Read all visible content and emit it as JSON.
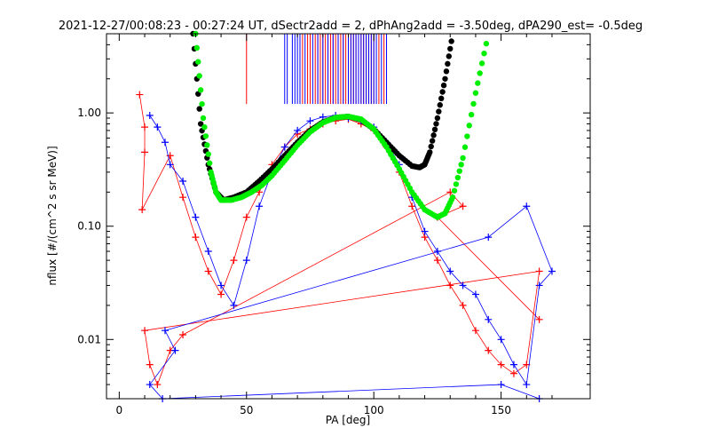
{
  "chart_data": {
    "type": "scatter",
    "title": "2021-12-27/00:08:23 - 00:27:24 UT, dSectr2add = 2, dPhAng2add = -3.50deg, dPA290_est=  -0.5deg",
    "xlabel": "PA [deg]",
    "ylabel": "nflux [#/(cm^2 s sr MeV)]",
    "xlim": [
      -5,
      185
    ],
    "ylim": [
      0.003,
      5
    ],
    "y_scale": "log",
    "x_ticks": [
      0,
      50,
      100,
      150
    ],
    "x_tick_labels": [
      "0",
      "50",
      "100",
      "150"
    ],
    "y_ticks": [
      0.01,
      0.1,
      1.0
    ],
    "y_tick_labels": [
      "0.01",
      "0.10",
      "1.00"
    ],
    "grid": false,
    "colors": {
      "red": "#ff0000",
      "blue": "#0000ff",
      "black_fit": "#000000",
      "green_fit": "#00ee00",
      "frame": "#000000"
    },
    "series": [
      {
        "color": "red",
        "style": "lines+plus-markers",
        "points_sample": [
          [
            8,
            1.45
          ],
          [
            10,
            0.75
          ],
          [
            10,
            0.45
          ],
          [
            9,
            0.14
          ],
          [
            20,
            0.42
          ],
          [
            25,
            0.18
          ],
          [
            30,
            0.08
          ],
          [
            35,
            0.04
          ],
          [
            40,
            0.025
          ],
          [
            45,
            0.05
          ],
          [
            50,
            0.12
          ],
          [
            55,
            0.2
          ],
          [
            60,
            0.35
          ],
          [
            65,
            0.5
          ],
          [
            70,
            0.65
          ],
          [
            75,
            0.72
          ],
          [
            80,
            0.8
          ],
          [
            85,
            0.85
          ],
          [
            90,
            0.88
          ],
          [
            95,
            0.8
          ],
          [
            100,
            0.7
          ],
          [
            105,
            0.5
          ],
          [
            110,
            0.3
          ],
          [
            115,
            0.15
          ],
          [
            120,
            0.08
          ],
          [
            125,
            0.05
          ],
          [
            130,
            0.03
          ],
          [
            135,
            0.02
          ],
          [
            140,
            0.012
          ],
          [
            145,
            0.008
          ],
          [
            150,
            0.006
          ],
          [
            155,
            0.005
          ],
          [
            160,
            0.006
          ],
          [
            165,
            0.04
          ],
          [
            10,
            0.012
          ],
          [
            12,
            0.006
          ],
          [
            15,
            0.004
          ],
          [
            20,
            0.008
          ],
          [
            25,
            0.011
          ],
          [
            130,
            0.2
          ],
          [
            135,
            0.15
          ],
          [
            125,
            0.12
          ],
          [
            165,
            0.015
          ]
        ]
      },
      {
        "color": "blue",
        "style": "lines+plus-markers",
        "points_sample": [
          [
            12,
            0.95
          ],
          [
            15,
            0.75
          ],
          [
            18,
            0.55
          ],
          [
            20,
            0.35
          ],
          [
            25,
            0.25
          ],
          [
            30,
            0.12
          ],
          [
            35,
            0.06
          ],
          [
            40,
            0.03
          ],
          [
            45,
            0.02
          ],
          [
            50,
            0.05
          ],
          [
            55,
            0.15
          ],
          [
            60,
            0.3
          ],
          [
            65,
            0.5
          ],
          [
            70,
            0.7
          ],
          [
            75,
            0.85
          ],
          [
            80,
            0.92
          ],
          [
            85,
            0.95
          ],
          [
            90,
            0.9
          ],
          [
            95,
            0.85
          ],
          [
            100,
            0.75
          ],
          [
            105,
            0.55
          ],
          [
            110,
            0.35
          ],
          [
            115,
            0.18
          ],
          [
            120,
            0.09
          ],
          [
            125,
            0.06
          ],
          [
            130,
            0.04
          ],
          [
            135,
            0.03
          ],
          [
            140,
            0.025
          ],
          [
            145,
            0.015
          ],
          [
            150,
            0.01
          ],
          [
            155,
            0.006
          ],
          [
            160,
            0.004
          ],
          [
            165,
            0.03
          ],
          [
            170,
            0.04
          ],
          [
            160,
            0.15
          ],
          [
            145,
            0.08
          ],
          [
            18,
            0.012
          ],
          [
            22,
            0.008
          ],
          [
            12,
            0.004
          ],
          [
            17,
            0.003
          ],
          [
            150,
            0.004
          ],
          [
            165,
            0.003
          ]
        ]
      },
      {
        "name": "",
        "color": "black_fit",
        "style": "thick-dots",
        "x": [
          29,
          32,
          35,
          38,
          41,
          45,
          50,
          55,
          60,
          65,
          70,
          75,
          80,
          85,
          90,
          95,
          100,
          105,
          110,
          115,
          118,
          120,
          122,
          125,
          128,
          131
        ],
        "y": [
          5,
          0.8,
          0.35,
          0.2,
          0.17,
          0.18,
          0.2,
          0.25,
          0.32,
          0.42,
          0.55,
          0.7,
          0.83,
          0.91,
          0.93,
          0.87,
          0.72,
          0.55,
          0.42,
          0.34,
          0.33,
          0.35,
          0.45,
          0.9,
          2.0,
          5
        ]
      },
      {
        "name": "",
        "color": "green_fit",
        "style": "thick-dots",
        "x": [
          30,
          33,
          36,
          38,
          40,
          44,
          48,
          52,
          56,
          60,
          65,
          70,
          75,
          80,
          85,
          90,
          95,
          100,
          105,
          110,
          115,
          120,
          125,
          128,
          131,
          135,
          140,
          145
        ],
        "y": [
          5,
          0.9,
          0.3,
          0.2,
          0.17,
          0.17,
          0.18,
          0.2,
          0.23,
          0.28,
          0.38,
          0.52,
          0.68,
          0.82,
          0.91,
          0.93,
          0.88,
          0.72,
          0.5,
          0.32,
          0.2,
          0.14,
          0.12,
          0.13,
          0.18,
          0.4,
          1.5,
          5
        ]
      }
    ],
    "vertical_lines": [
      {
        "color": "red",
        "x": [
          50,
          72,
          74,
          75,
          77,
          78,
          79,
          80,
          81,
          82,
          83,
          84,
          85,
          86,
          87,
          88,
          89,
          90,
          91,
          92,
          93,
          94,
          95,
          96,
          97,
          98,
          99,
          100,
          102,
          104
        ]
      },
      {
        "color": "blue",
        "x": [
          65,
          66,
          68,
          69,
          70,
          71,
          73,
          76,
          78,
          80,
          82,
          84,
          86,
          88,
          90,
          91,
          92,
          93,
          94,
          95,
          96,
          97,
          98,
          99,
          100,
          101,
          103,
          105
        ]
      }
    ]
  }
}
